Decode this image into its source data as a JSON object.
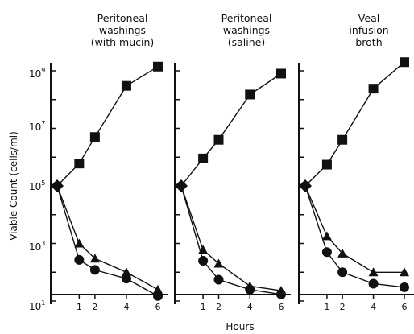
{
  "chart_data": {
    "type": "line",
    "y_scale": "log",
    "ylim": [
      10,
      3000000000
    ],
    "xlim": [
      -0.7,
      6.1
    ],
    "ylabel": "Viable Count (cells/ml)",
    "xlabel": "Hours",
    "y_ticks": [
      {
        "base": "10",
        "exp": "1",
        "value": 10
      },
      {
        "base": "10",
        "exp": "3",
        "value": 1000
      },
      {
        "base": "10",
        "exp": "5",
        "value": 100000
      },
      {
        "base": "10",
        "exp": "7",
        "value": 10000000
      },
      {
        "base": "10",
        "exp": "9",
        "value": 1000000000
      }
    ],
    "x_tick_labels": [
      "1",
      "2",
      "4",
      "6"
    ],
    "x_ticks": [
      1,
      2,
      4,
      6
    ],
    "marker_colors": {
      "square": "#111111",
      "triangle": "#111111",
      "circle": "#111111"
    },
    "panels": [
      {
        "title": [
          "Peritoneal",
          "washings",
          "(with mucin)"
        ],
        "series": [
          {
            "marker": "square",
            "x": [
              -0.4,
              1,
              2,
              4,
              6
            ],
            "y": [
              100000,
              600000,
              5000000,
              300000000,
              1400000000
            ]
          },
          {
            "marker": "triangle",
            "x": [
              -0.4,
              1,
              2,
              4,
              6
            ],
            "y": [
              100000,
              1000,
              300,
              100,
              25
            ]
          },
          {
            "marker": "circle",
            "x": [
              -0.4,
              1,
              2,
              4,
              6
            ],
            "y": [
              100000,
              270,
              120,
              60,
              15
            ]
          }
        ]
      },
      {
        "title": [
          "Peritoneal",
          "washings",
          "(saline)"
        ],
        "series": [
          {
            "marker": "square",
            "x": [
              -0.4,
              1,
              2,
              4,
              6
            ],
            "y": [
              100000,
              900000,
              4000000,
              150000000,
              800000000
            ]
          },
          {
            "marker": "triangle",
            "x": [
              -0.4,
              1,
              2,
              4,
              6
            ],
            "y": [
              100000,
              600,
              200,
              33,
              23
            ]
          },
          {
            "marker": "circle",
            "x": [
              -0.4,
              1,
              2,
              4,
              6
            ],
            "y": [
              100000,
              250,
              55,
              25,
              17
            ]
          }
        ]
      },
      {
        "title": [
          "Veal",
          "infusion",
          "broth"
        ],
        "series": [
          {
            "marker": "square",
            "x": [
              -0.4,
              1,
              2,
              4,
              6
            ],
            "y": [
              100000,
              550000,
              4000000,
              240000000,
              2000000000
            ]
          },
          {
            "marker": "triangle",
            "x": [
              -0.4,
              1,
              2,
              4,
              6
            ],
            "y": [
              100000,
              1800,
              450,
              100,
              100
            ]
          },
          {
            "marker": "circle",
            "x": [
              -0.4,
              1,
              2,
              4,
              6
            ],
            "y": [
              100000,
              500,
              100,
              40,
              30
            ]
          }
        ]
      }
    ]
  }
}
